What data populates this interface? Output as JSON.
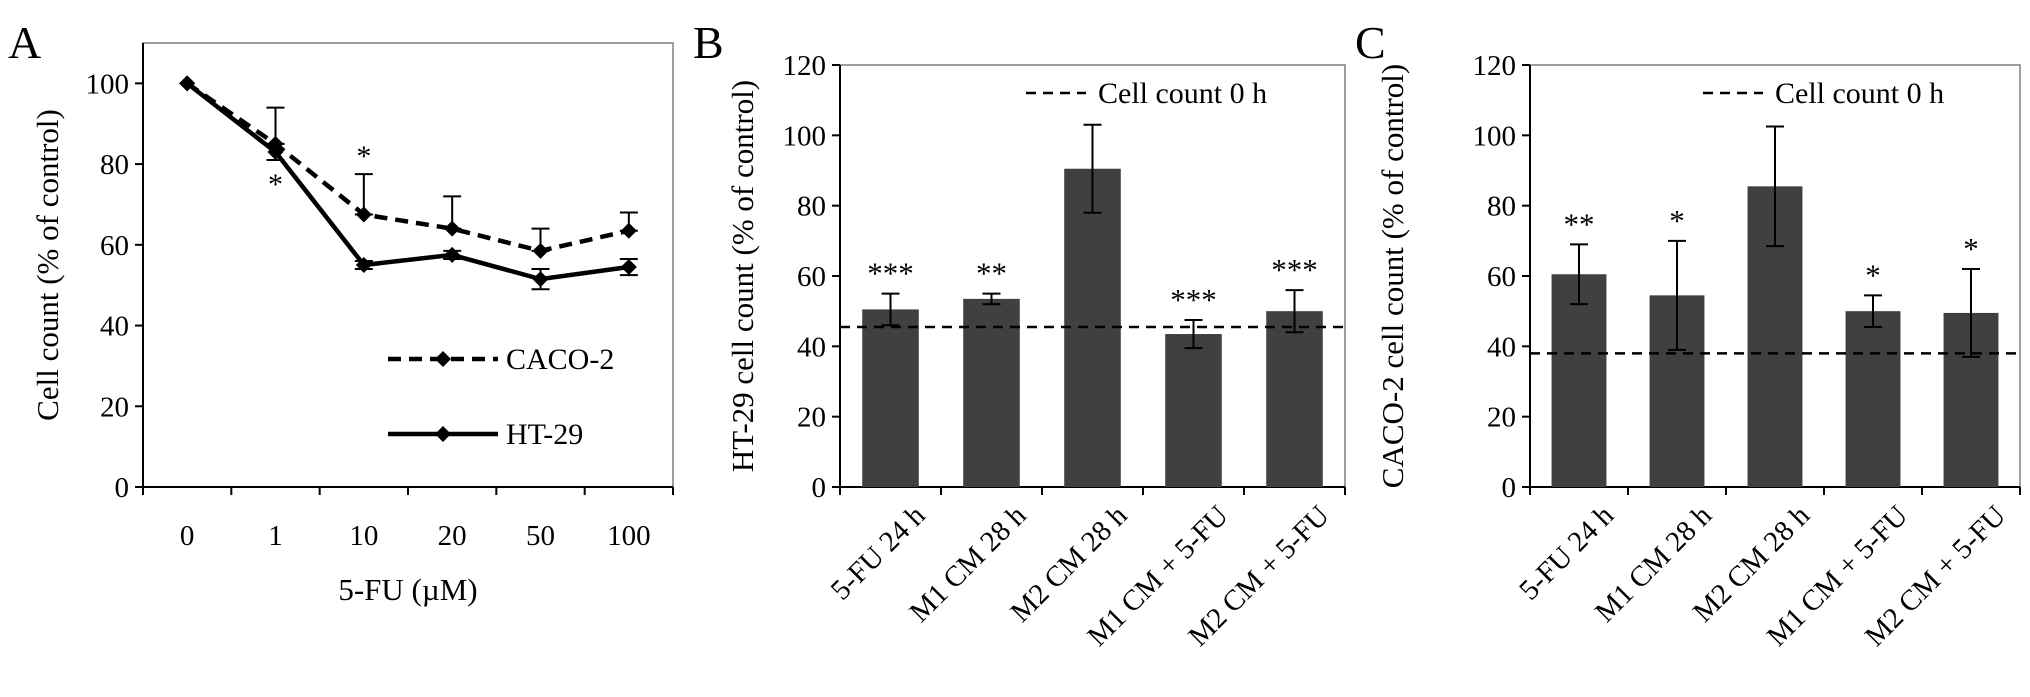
{
  "colors": {
    "bar": "#404040",
    "axis": "#000000",
    "text": "#000000"
  },
  "chart_data": [
    {
      "type": "line",
      "panel_letter": "A",
      "title": "",
      "xlabel": "5-FU (µM)",
      "ylabel": "Cell count  (% of control)",
      "categories": [
        "0",
        "1",
        "10",
        "20",
        "50",
        "100"
      ],
      "ylim": [
        0,
        110
      ],
      "yticks": [
        0,
        20,
        40,
        60,
        80,
        100
      ],
      "legend_position": "bottom-right",
      "grid": false,
      "series": [
        {
          "name": "CACO-2",
          "style": "dashed",
          "marker": "diamond",
          "values": [
            100,
            85,
            67.5,
            64,
            58.5,
            63.5
          ],
          "errors": [
            0,
            9,
            10,
            8,
            5.5,
            4.5
          ],
          "significance": [
            "",
            "",
            "*",
            "",
            "",
            ""
          ]
        },
        {
          "name": "HT-29",
          "style": "solid",
          "marker": "diamond",
          "values": [
            100,
            83,
            55,
            57.5,
            51.5,
            54.5
          ],
          "errors": [
            0,
            2,
            1,
            1,
            2.5,
            2
          ],
          "significance": [
            "",
            "*",
            "",
            "",
            "",
            ""
          ]
        }
      ]
    },
    {
      "type": "bar",
      "panel_letter": "B",
      "title": "",
      "xlabel": "",
      "ylabel": "HT-29 cell count  (% of control)",
      "categories": [
        "5-FU 24 h",
        "M1 CM 28 h",
        "M2 CM 28 h",
        "M1 CM + 5-FU",
        "M2 CM + 5-FU"
      ],
      "values": [
        50.5,
        53.5,
        90.5,
        43.5,
        50
      ],
      "errors": [
        4.5,
        1.5,
        12.5,
        4,
        6
      ],
      "significance": [
        "***",
        "**",
        "",
        "***",
        "***"
      ],
      "reference_line": {
        "label": "Cell count 0 h",
        "value": 45.5,
        "style": "dashed"
      },
      "ylim": [
        0,
        120
      ],
      "yticks": [
        0,
        20,
        40,
        60,
        80,
        100,
        120
      ],
      "legend_position": "top-right",
      "grid": false
    },
    {
      "type": "bar",
      "panel_letter": "C",
      "title": "",
      "xlabel": "",
      "ylabel": "CACO-2 cell count  (% of control)",
      "categories": [
        "5-FU 24 h",
        "M1 CM 28 h",
        "M2 CM 28 h",
        "M1 CM + 5-FU",
        "M2 CM + 5-FU"
      ],
      "values": [
        60.5,
        54.5,
        85.5,
        50,
        49.5
      ],
      "errors": [
        8.5,
        15.5,
        17,
        4.5,
        12.5
      ],
      "significance": [
        "**",
        "*",
        "",
        "*",
        "*"
      ],
      "reference_line": {
        "label": "Cell count 0 h",
        "value": 38,
        "style": "dashed"
      },
      "ylim": [
        0,
        120
      ],
      "yticks": [
        0,
        20,
        40,
        60,
        80,
        100,
        120
      ],
      "legend_position": "top-right",
      "grid": false
    }
  ]
}
